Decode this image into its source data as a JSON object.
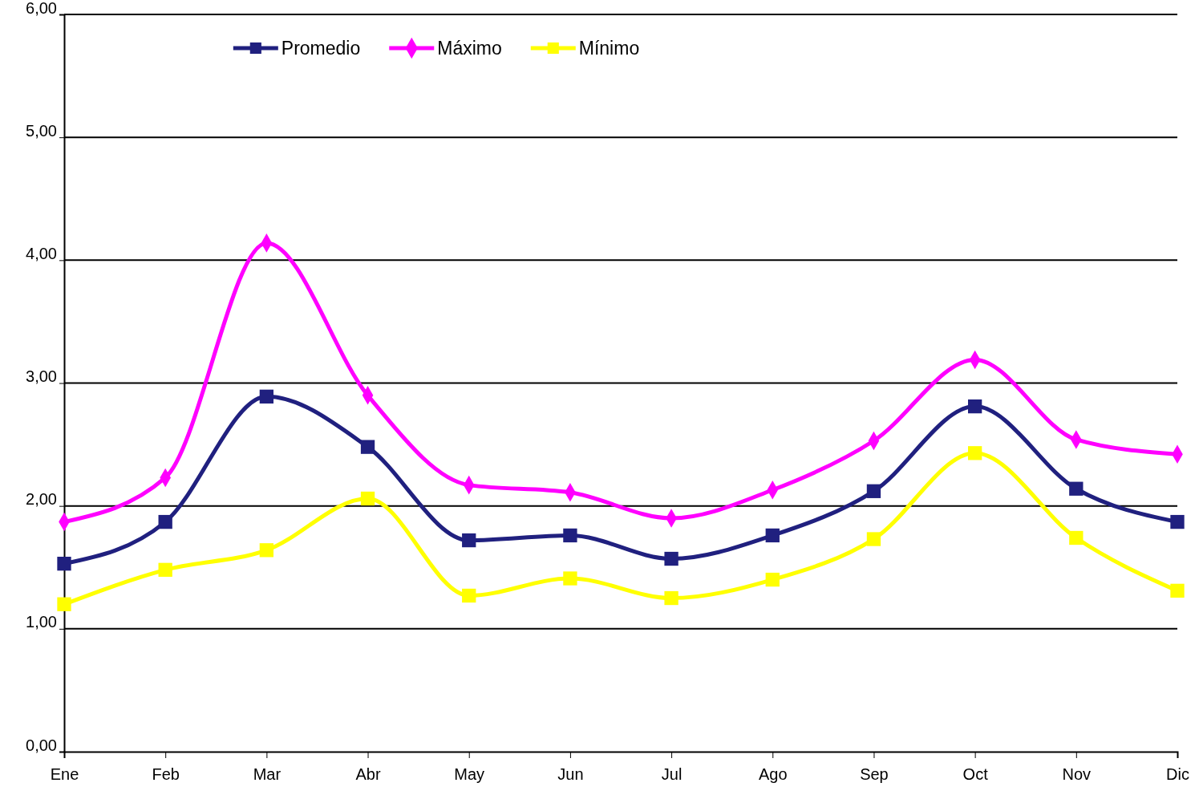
{
  "chart_data": {
    "type": "line",
    "categories": [
      "Ene",
      "Feb",
      "Mar",
      "Abr",
      "May",
      "Jun",
      "Jul",
      "Ago",
      "Sep",
      "Oct",
      "Nov",
      "Dic"
    ],
    "series": [
      {
        "name": "Promedio",
        "color": "#20207f",
        "marker": "square",
        "values": [
          1.53,
          1.87,
          2.89,
          2.48,
          1.72,
          1.76,
          1.57,
          1.76,
          2.12,
          2.81,
          2.14,
          1.87
        ]
      },
      {
        "name": "Máximo",
        "color": "#ff00ff",
        "marker": "diamond",
        "values": [
          1.87,
          2.23,
          4.14,
          2.9,
          2.17,
          2.11,
          1.9,
          2.13,
          2.53,
          3.19,
          2.54,
          2.42
        ]
      },
      {
        "name": "Mínimo",
        "color": "#ffff00",
        "marker": "square",
        "values": [
          1.2,
          1.48,
          1.64,
          2.06,
          1.27,
          1.41,
          1.25,
          1.4,
          1.73,
          2.43,
          1.74,
          1.31
        ]
      }
    ],
    "ylim": [
      0,
      6
    ],
    "yticks": [
      {
        "value": 0,
        "label": "0,00"
      },
      {
        "value": 1,
        "label": "1,00"
      },
      {
        "value": 2,
        "label": "2,00"
      },
      {
        "value": 3,
        "label": "3,00"
      },
      {
        "value": 4,
        "label": "4,00"
      },
      {
        "value": 5,
        "label": "5,00"
      },
      {
        "value": 6,
        "label": "6,00"
      }
    ],
    "grid": "y",
    "legend": "top",
    "line_style": "solid"
  }
}
